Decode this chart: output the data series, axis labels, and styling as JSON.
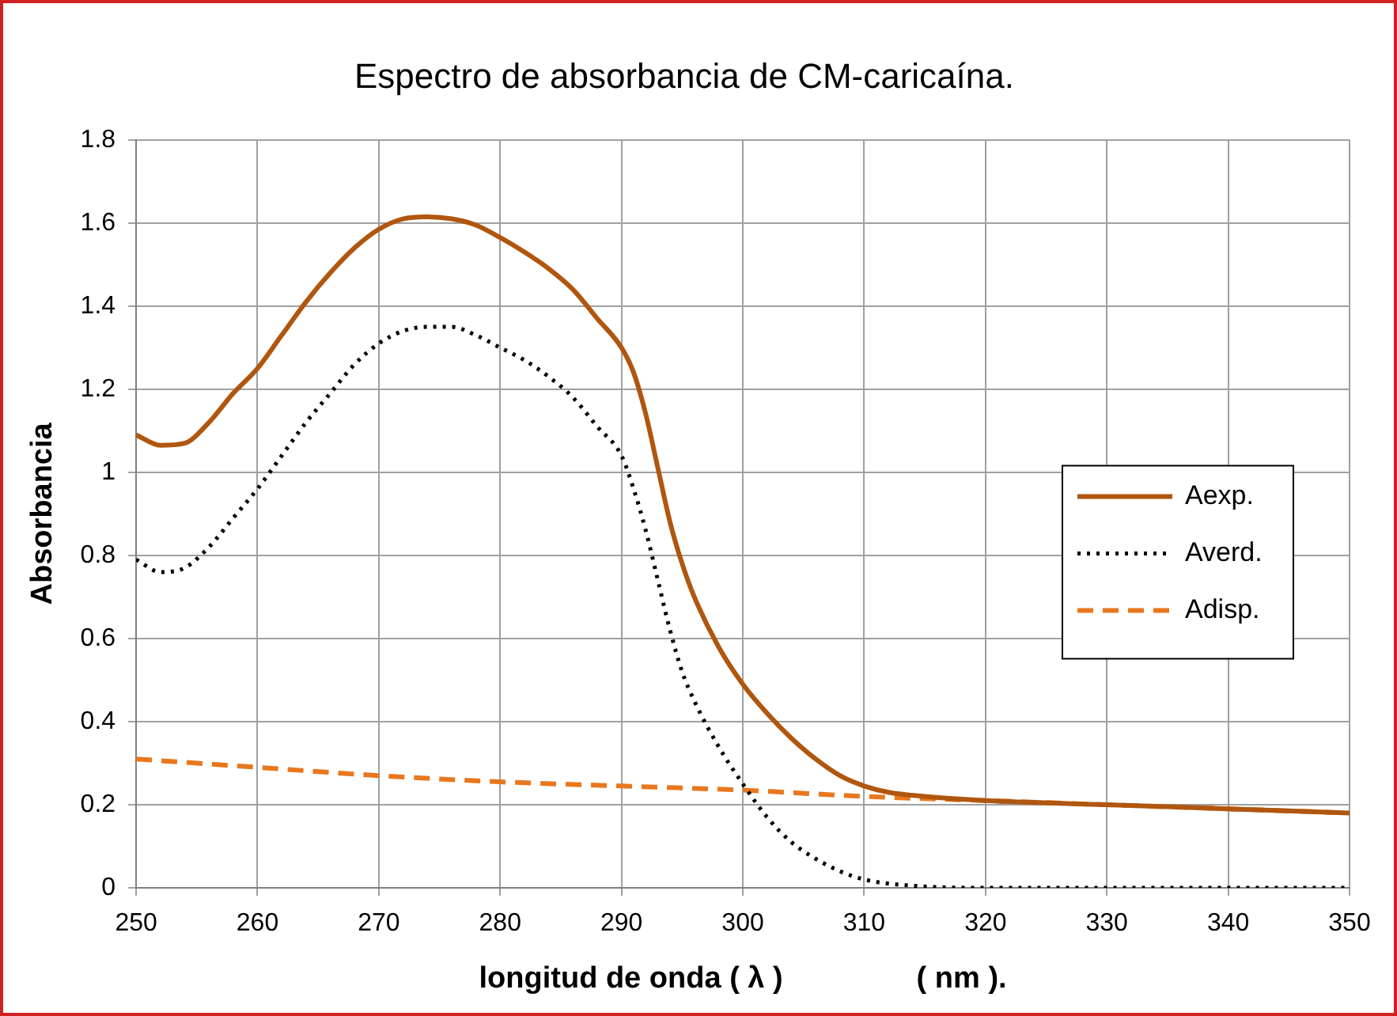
{
  "chart_data": {
    "type": "line",
    "title": "Espectro de absorbancia de CM-caricaína.",
    "xlabel": "longitud de onda ( λ )                ( nm ).",
    "ylabel": "Absorbancia",
    "xlim": [
      250,
      350
    ],
    "xticks": [
      250,
      260,
      270,
      280,
      290,
      300,
      310,
      320,
      330,
      340,
      350
    ],
    "ylim": [
      0,
      1.8
    ],
    "yticks": [
      0,
      0.2,
      0.4,
      0.6,
      0.8,
      1,
      1.2,
      1.4,
      1.6,
      1.8
    ],
    "grid": true,
    "legend": "right",
    "marker": "none",
    "series": [
      {
        "name": "Aexp.",
        "color": "#b0560f",
        "line_style": "solid",
        "x": [
          250,
          252,
          254,
          256,
          258,
          260,
          262,
          264,
          266,
          268,
          270,
          272,
          274,
          276,
          278,
          280,
          282,
          284,
          286,
          288,
          290,
          291,
          292,
          293,
          294,
          295,
          296,
          298,
          300,
          302,
          304,
          306,
          308,
          310,
          312,
          315,
          320,
          330,
          340,
          350
        ],
        "values": [
          1.09,
          1.065,
          1.07,
          1.12,
          1.19,
          1.25,
          1.33,
          1.41,
          1.48,
          1.54,
          1.585,
          1.61,
          1.615,
          1.61,
          1.595,
          1.565,
          1.53,
          1.49,
          1.44,
          1.37,
          1.3,
          1.24,
          1.14,
          1.01,
          0.88,
          0.78,
          0.7,
          0.58,
          0.49,
          0.42,
          0.36,
          0.31,
          0.27,
          0.245,
          0.23,
          0.22,
          0.21,
          0.2,
          0.19,
          0.18
        ]
      },
      {
        "name": "Averd.",
        "color": "#000000",
        "line_style": "dotted",
        "x": [
          250,
          252,
          254,
          256,
          258,
          260,
          262,
          264,
          266,
          268,
          270,
          272,
          274,
          276,
          278,
          280,
          282,
          284,
          286,
          288,
          290,
          291,
          292,
          293,
          294,
          295,
          296,
          298,
          300,
          302,
          304,
          306,
          308,
          310,
          314,
          320,
          330,
          340,
          350
        ],
        "values": [
          0.79,
          0.76,
          0.77,
          0.82,
          0.89,
          0.96,
          1.04,
          1.12,
          1.19,
          1.26,
          1.31,
          1.34,
          1.35,
          1.35,
          1.33,
          1.3,
          1.27,
          1.23,
          1.18,
          1.11,
          1.04,
          0.96,
          0.86,
          0.74,
          0.62,
          0.52,
          0.45,
          0.34,
          0.25,
          0.17,
          0.11,
          0.07,
          0.04,
          0.02,
          0.005,
          0,
          0,
          0,
          0
        ]
      },
      {
        "name": "Adisp.",
        "color": "#e8771e",
        "line_style": "dashed",
        "x": [
          250,
          260,
          270,
          280,
          290,
          300,
          310,
          320,
          330,
          340,
          350
        ],
        "values": [
          0.31,
          0.29,
          0.27,
          0.255,
          0.245,
          0.235,
          0.22,
          0.21,
          0.2,
          0.19,
          0.18
        ]
      }
    ]
  }
}
